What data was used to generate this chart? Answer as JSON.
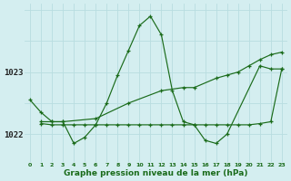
{
  "xlabel": "Graphe pression niveau de la mer (hPa)",
  "background_color": "#d4eef0",
  "grid_color": "#b8dde0",
  "line_color": "#1a6b1a",
  "xlim": [
    -0.5,
    23.5
  ],
  "ylim": [
    1021.55,
    1024.1
  ],
  "yticks": [
    1022,
    1023
  ],
  "xticks": [
    0,
    1,
    2,
    3,
    4,
    5,
    6,
    7,
    8,
    9,
    10,
    11,
    12,
    13,
    14,
    15,
    16,
    17,
    18,
    19,
    20,
    21,
    22,
    23
  ],
  "series1_x": [
    0,
    1,
    2,
    3,
    4,
    5,
    6,
    7,
    8,
    9,
    10,
    11,
    12,
    13,
    14,
    15,
    16,
    17,
    18,
    21,
    22,
    23
  ],
  "series1_y": [
    1022.55,
    1022.35,
    1022.2,
    1022.2,
    1021.85,
    1021.95,
    1022.15,
    1022.5,
    1022.95,
    1023.35,
    1023.75,
    1023.9,
    1023.6,
    1022.7,
    1022.2,
    1022.15,
    1021.9,
    1021.85,
    1022.0,
    1023.1,
    1023.05,
    1023.05
  ],
  "series2_x": [
    1,
    2,
    3,
    6,
    9,
    12,
    14,
    15,
    17,
    18,
    19,
    20,
    21,
    22,
    23
  ],
  "series2_y": [
    1022.2,
    1022.2,
    1022.2,
    1022.25,
    1022.5,
    1022.7,
    1022.75,
    1022.75,
    1022.9,
    1022.95,
    1023.0,
    1023.1,
    1023.2,
    1023.28,
    1023.32
  ],
  "series3_x": [
    1,
    2,
    3,
    4,
    5,
    6,
    7,
    8,
    9,
    10,
    11,
    12,
    13,
    14,
    15,
    16,
    17,
    18,
    19,
    20,
    21,
    22,
    23
  ],
  "series3_y": [
    1022.17,
    1022.15,
    1022.15,
    1022.15,
    1022.15,
    1022.15,
    1022.15,
    1022.15,
    1022.15,
    1022.15,
    1022.15,
    1022.15,
    1022.15,
    1022.15,
    1022.15,
    1022.15,
    1022.15,
    1022.15,
    1022.15,
    1022.15,
    1022.17,
    1022.2,
    1023.05
  ]
}
